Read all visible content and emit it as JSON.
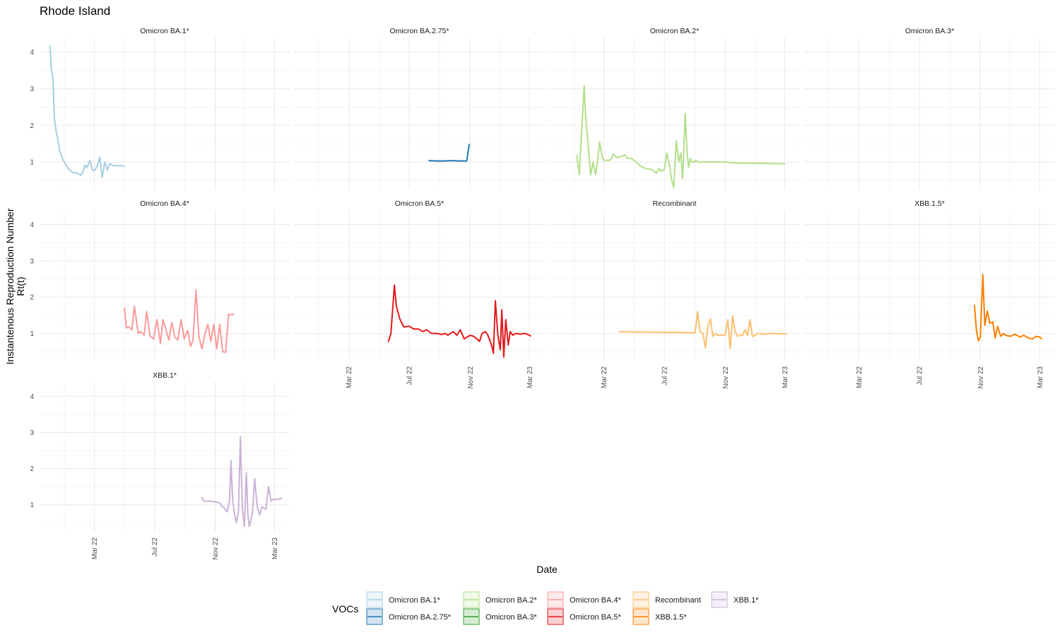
{
  "chart_data": {
    "type": "line",
    "title": "Rhode Island",
    "xlabel": "Date",
    "ylabel_line1": "Instantenous Reproduction Number",
    "ylabel_line2": "Rt(t)",
    "y_ticks": [
      1,
      2,
      3,
      4
    ],
    "ylim": [
      0.25,
      4.4
    ],
    "xlim": [
      "2021-11-10",
      "2023-04-01"
    ],
    "x_ticks": [
      {
        "date": "2022-03-01",
        "label": "Mar 22"
      },
      {
        "date": "2022-07-01",
        "label": "Jul 22"
      },
      {
        "date": "2022-11-01",
        "label": "Nov 22"
      },
      {
        "date": "2023-03-01",
        "label": "Mar 23"
      }
    ],
    "legend": {
      "title": "VOCs",
      "position": "bottom",
      "entries": [
        {
          "name": "Omicron BA.1*",
          "color": "#a6cee3"
        },
        {
          "name": "Omicron BA.2.75*",
          "color": "#1f78b4"
        },
        {
          "name": "Omicron BA.2*",
          "color": "#b2df8a"
        },
        {
          "name": "Omicron BA.3*",
          "color": "#33a02c"
        },
        {
          "name": "Omicron BA.4*",
          "color": "#fb9a99"
        },
        {
          "name": "Omicron BA.5*",
          "color": "#e31a1c"
        },
        {
          "name": "Recombinant",
          "color": "#fdbf6f"
        },
        {
          "name": "XBB.1.5*",
          "color": "#ff7f00"
        },
        {
          "name": "XBB.1*",
          "color": "#cab2d6"
        }
      ]
    },
    "series": [
      {
        "name": "Omicron BA.1*",
        "color": "#a6cee3",
        "x": [
          "2021-12-01",
          "2021-12-04",
          "2021-12-07",
          "2021-12-10",
          "2021-12-13",
          "2021-12-17",
          "2021-12-21",
          "2021-12-26",
          "2022-01-01",
          "2022-01-08",
          "2022-01-16",
          "2022-01-25",
          "2022-02-01",
          "2022-02-06",
          "2022-02-10",
          "2022-02-14",
          "2022-02-20",
          "2022-02-25",
          "2022-03-02",
          "2022-03-07",
          "2022-03-12",
          "2022-03-17",
          "2022-03-22",
          "2022-03-27",
          "2022-04-01",
          "2022-04-06",
          "2022-04-11",
          "2022-04-16",
          "2022-04-21",
          "2022-04-26",
          "2022-05-01"
        ],
        "y": [
          4.18,
          3.5,
          3.3,
          2.2,
          1.9,
          1.62,
          1.3,
          1.1,
          0.95,
          0.8,
          0.72,
          0.7,
          0.64,
          0.72,
          0.92,
          0.85,
          1.05,
          0.78,
          0.78,
          0.9,
          1.13,
          0.58,
          1.0,
          0.78,
          0.95,
          0.92,
          0.9,
          0.9,
          0.9,
          0.9,
          0.88
        ]
      },
      {
        "name": "Omicron BA.2.75*",
        "color": "#1f78b4",
        "x": [
          "2022-08-10",
          "2022-08-25",
          "2022-09-10",
          "2022-09-25",
          "2022-10-10",
          "2022-10-20",
          "2022-10-25",
          "2022-10-30"
        ],
        "y": [
          1.04,
          1.03,
          1.03,
          1.04,
          1.03,
          1.03,
          1.03,
          1.48
        ]
      },
      {
        "name": "Omicron BA.2*",
        "color": "#b2df8a",
        "x": [
          "2022-01-05",
          "2022-01-10",
          "2022-01-20",
          "2022-01-23",
          "2022-01-26",
          "2022-02-02",
          "2022-02-07",
          "2022-02-12",
          "2022-02-16",
          "2022-02-20",
          "2022-02-26",
          "2022-03-02",
          "2022-03-08",
          "2022-03-14",
          "2022-03-20",
          "2022-03-27",
          "2022-04-05",
          "2022-04-12",
          "2022-04-18",
          "2022-04-25",
          "2022-05-05",
          "2022-05-15",
          "2022-05-25",
          "2022-06-05",
          "2022-06-15",
          "2022-06-20",
          "2022-06-25",
          "2022-07-01",
          "2022-07-06",
          "2022-07-12",
          "2022-07-16",
          "2022-07-20",
          "2022-07-25",
          "2022-07-30",
          "2022-08-03",
          "2022-08-07",
          "2022-08-12",
          "2022-08-16",
          "2022-08-19",
          "2022-08-22",
          "2022-08-26",
          "2022-08-30",
          "2022-09-03",
          "2022-09-07",
          "2022-09-12",
          "2022-09-20",
          "2022-10-01",
          "2022-11-01",
          "2022-12-01",
          "2023-01-01",
          "2023-02-01",
          "2023-03-01"
        ],
        "y": [
          1.18,
          0.66,
          3.08,
          2.2,
          1.78,
          0.65,
          1.0,
          0.66,
          1.0,
          1.55,
          1.1,
          1.05,
          1.05,
          1.05,
          1.22,
          1.12,
          1.15,
          1.2,
          1.1,
          1.1,
          1.0,
          0.88,
          0.82,
          0.8,
          0.7,
          0.82,
          0.75,
          0.8,
          1.25,
          0.85,
          0.5,
          0.3,
          1.58,
          1.0,
          1.25,
          0.55,
          2.32,
          1.22,
          0.85,
          1.1,
          1.0,
          1.0,
          1.05,
          1.0,
          1.0,
          1.0,
          1.0,
          1.0,
          0.97,
          0.97,
          0.96,
          0.95
        ]
      },
      {
        "name": "Omicron BA.4*",
        "color": "#fb9a99",
        "x": [
          "2022-05-01",
          "2022-05-05",
          "2022-05-10",
          "2022-05-16",
          "2022-05-21",
          "2022-05-29",
          "2022-06-03",
          "2022-06-10",
          "2022-06-15",
          "2022-06-22",
          "2022-06-29",
          "2022-07-06",
          "2022-07-13",
          "2022-07-18",
          "2022-07-24",
          "2022-07-30",
          "2022-08-05",
          "2022-08-11",
          "2022-08-17",
          "2022-08-24",
          "2022-08-30",
          "2022-09-06",
          "2022-09-12",
          "2022-09-17",
          "2022-09-23",
          "2022-09-29",
          "2022-10-05",
          "2022-10-11",
          "2022-10-17",
          "2022-10-23",
          "2022-10-29",
          "2022-11-04",
          "2022-11-10",
          "2022-11-16",
          "2022-11-22",
          "2022-11-28",
          "2022-12-03",
          "2022-12-08"
        ],
        "y": [
          1.7,
          1.15,
          1.18,
          1.1,
          1.75,
          1.0,
          1.05,
          0.95,
          1.6,
          0.92,
          0.85,
          1.38,
          0.72,
          1.38,
          1.12,
          0.82,
          1.3,
          0.9,
          0.82,
          1.38,
          0.85,
          1.08,
          0.65,
          0.8,
          2.2,
          0.92,
          0.58,
          0.98,
          1.25,
          0.78,
          1.25,
          0.58,
          1.25,
          0.5,
          0.48,
          1.52,
          1.52,
          1.52
        ]
      },
      {
        "name": "Omicron BA.5*",
        "color": "#e31a1c",
        "x": [
          "2022-05-20",
          "2022-05-25",
          "2022-06-01",
          "2022-06-05",
          "2022-06-12",
          "2022-06-20",
          "2022-07-01",
          "2022-07-10",
          "2022-07-20",
          "2022-07-28",
          "2022-08-05",
          "2022-08-15",
          "2022-08-25",
          "2022-09-05",
          "2022-09-12",
          "2022-09-17",
          "2022-09-22",
          "2022-09-28",
          "2022-10-05",
          "2022-10-12",
          "2022-10-20",
          "2022-11-01",
          "2022-11-08",
          "2022-11-15",
          "2022-11-20",
          "2022-11-25",
          "2022-12-02",
          "2022-12-07",
          "2022-12-11",
          "2022-12-15",
          "2022-12-18",
          "2022-12-22",
          "2022-12-27",
          "2023-01-01",
          "2023-01-04",
          "2023-01-08",
          "2023-01-12",
          "2023-01-17",
          "2023-01-21",
          "2023-01-26",
          "2023-02-01",
          "2023-02-10",
          "2023-02-20",
          "2023-03-01",
          "2023-03-03"
        ],
        "y": [
          0.78,
          1.0,
          2.33,
          1.75,
          1.4,
          1.18,
          1.2,
          1.12,
          1.12,
          1.05,
          1.1,
          1.0,
          1.0,
          0.97,
          1.0,
          0.95,
          1.0,
          1.05,
          0.95,
          1.1,
          0.85,
          0.95,
          0.92,
          0.85,
          0.78,
          1.0,
          1.05,
          0.95,
          0.8,
          0.65,
          0.45,
          1.9,
          0.95,
          0.55,
          1.65,
          0.35,
          1.38,
          0.68,
          1.05,
          0.95,
          1.0,
          0.98,
          1.0,
          0.95,
          0.93
        ]
      },
      {
        "name": "Recombinant",
        "color": "#fdbf6f",
        "x": [
          "2022-04-01",
          "2022-05-01",
          "2022-06-01",
          "2022-07-01",
          "2022-08-01",
          "2022-08-20",
          "2022-09-01",
          "2022-09-06",
          "2022-09-11",
          "2022-09-17",
          "2022-09-22",
          "2022-09-27",
          "2022-10-02",
          "2022-10-07",
          "2022-10-12",
          "2022-10-17",
          "2022-10-22",
          "2022-11-01",
          "2022-11-06",
          "2022-11-11",
          "2022-11-16",
          "2022-11-21",
          "2022-11-26",
          "2022-12-01",
          "2022-12-06",
          "2022-12-11",
          "2022-12-16",
          "2022-12-21",
          "2022-12-26",
          "2023-01-01",
          "2023-01-06",
          "2023-01-11",
          "2023-01-16",
          "2023-01-21",
          "2023-02-01",
          "2023-02-15",
          "2023-03-01",
          "2023-03-05"
        ],
        "y": [
          1.05,
          1.04,
          1.04,
          1.03,
          1.03,
          1.02,
          1.02,
          1.6,
          1.05,
          1.0,
          0.6,
          1.2,
          1.4,
          0.92,
          1.0,
          0.95,
          0.95,
          0.95,
          1.38,
          0.58,
          1.48,
          1.05,
          0.92,
          0.95,
          0.95,
          1.1,
          0.95,
          1.38,
          0.92,
          0.95,
          1.0,
          1.0,
          0.98,
          0.98,
          1.0,
          0.99,
          0.99,
          0.99
        ]
      },
      {
        "name": "XBB.1.5*",
        "color": "#ff7f00",
        "x": [
          "2022-10-20",
          "2022-10-24",
          "2022-10-28",
          "2022-11-01",
          "2022-11-06",
          "2022-11-10",
          "2022-11-15",
          "2022-11-20",
          "2022-11-26",
          "2022-12-01",
          "2022-12-06",
          "2022-12-12",
          "2022-12-17",
          "2022-12-22",
          "2023-01-01",
          "2023-01-10",
          "2023-01-20",
          "2023-01-28",
          "2023-02-05",
          "2023-02-14",
          "2023-02-22",
          "2023-03-01",
          "2023-03-05"
        ],
        "y": [
          1.78,
          1.1,
          0.8,
          0.9,
          2.62,
          1.22,
          1.62,
          1.28,
          1.32,
          0.88,
          1.2,
          0.92,
          1.0,
          0.95,
          0.92,
          0.98,
          0.9,
          0.95,
          0.88,
          0.85,
          0.92,
          0.9,
          0.85
        ]
      },
      {
        "name": "XBB.1*",
        "color": "#cab2d6",
        "x": [
          "2022-10-05",
          "2022-10-09",
          "2022-10-20",
          "2022-11-01",
          "2022-11-10",
          "2022-11-15",
          "2022-11-20",
          "2022-11-25",
          "2022-11-30",
          "2022-12-03",
          "2022-12-06",
          "2022-12-10",
          "2022-12-14",
          "2022-12-18",
          "2022-12-22",
          "2022-12-26",
          "2022-12-30",
          "2023-01-03",
          "2023-01-06",
          "2023-01-09",
          "2023-01-12",
          "2023-01-16",
          "2023-01-20",
          "2023-01-25",
          "2023-01-30",
          "2023-02-04",
          "2023-02-08",
          "2023-02-12",
          "2023-02-17",
          "2023-02-22",
          "2023-02-27",
          "2023-03-04",
          "2023-03-09",
          "2023-03-15"
        ],
        "y": [
          1.2,
          1.1,
          1.1,
          1.08,
          1.05,
          0.95,
          0.9,
          0.8,
          1.1,
          2.22,
          1.2,
          0.75,
          0.5,
          0.8,
          2.88,
          0.9,
          0.4,
          1.88,
          0.75,
          0.4,
          0.55,
          0.85,
          1.72,
          0.95,
          0.72,
          0.95,
          0.9,
          0.88,
          1.5,
          1.1,
          1.15,
          1.15,
          1.15,
          1.18
        ]
      }
    ],
    "panels": [
      {
        "title": "Omicron BA.1*",
        "series": 0,
        "show_x_axis": false
      },
      {
        "title": "Omicron BA.2.75*",
        "series": 1,
        "show_x_axis": false
      },
      {
        "title": "Omicron BA.2*",
        "series": 2,
        "show_x_axis": false
      },
      {
        "title": "Omicron BA.3*",
        "series": null,
        "show_x_axis": false
      },
      {
        "title": "Omicron BA.4*",
        "series": 3,
        "show_x_axis": false
      },
      {
        "title": "Omicron BA.5*",
        "series": 4,
        "show_x_axis": true
      },
      {
        "title": "Recombinant",
        "series": 5,
        "show_x_axis": true
      },
      {
        "title": "XBB.1.5*",
        "series": 6,
        "show_x_axis": true
      },
      {
        "title": "XBB.1*",
        "series": 7,
        "show_x_axis": true
      }
    ],
    "grid": true
  }
}
